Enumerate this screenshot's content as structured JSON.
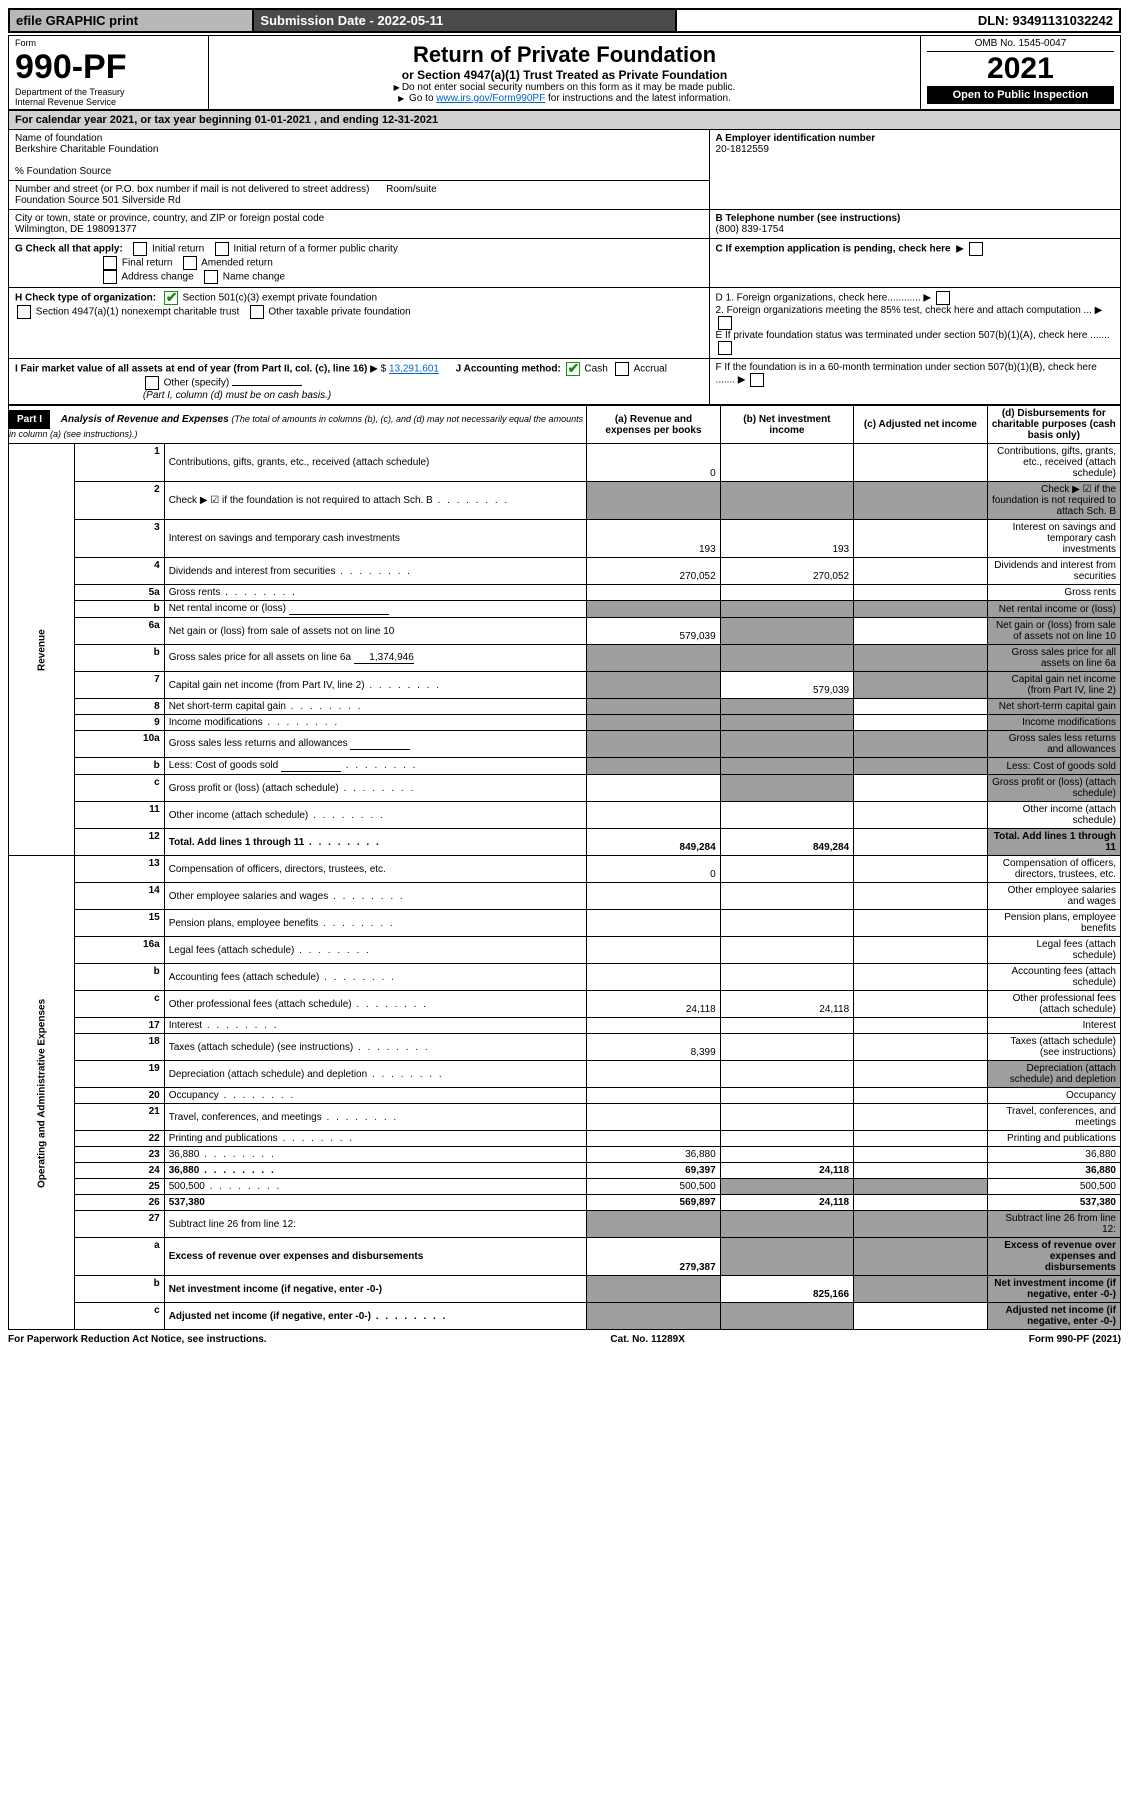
{
  "topbar": {
    "efile": "efile GRAPHIC print",
    "submission_label": "Submission Date - 2022-05-11",
    "dln": "DLN: 93491131032242"
  },
  "header": {
    "form_word": "Form",
    "form_no": "990-PF",
    "dept1": "Department of the Treasury",
    "dept2": "Internal Revenue Service",
    "title": "Return of Private Foundation",
    "subtitle": "or Section 4947(a)(1) Trust Treated as Private Foundation",
    "note1": "Do not enter social security numbers on this form as it may be made public.",
    "note2_pre": "Go to ",
    "note2_link": "www.irs.gov/Form990PF",
    "note2_post": " for instructions and the latest information.",
    "omb": "OMB No. 1545-0047",
    "year": "2021",
    "open": "Open to Public Inspection"
  },
  "cal": {
    "text_pre": "For calendar year 2021, or tax year beginning ",
    "begin": "01-01-2021",
    "mid": " , and ending ",
    "end": "12-31-2021"
  },
  "org": {
    "name_label": "Name of foundation",
    "name": "Berkshire Charitable Foundation",
    "care": "% Foundation Source",
    "addr_label": "Number and street (or P.O. box number if mail is not delivered to street address)",
    "addr": "Foundation Source 501 Silverside Rd",
    "room_label": "Room/suite",
    "city_label": "City or town, state or province, country, and ZIP or foreign postal code",
    "city": "Wilmington, DE  198091377",
    "a_label": "A Employer identification number",
    "a_val": "20-1812559",
    "b_label": "B Telephone number (see instructions)",
    "b_val": "(800) 839-1754",
    "c_label": "C If exemption application is pending, check here",
    "d1": "D 1. Foreign organizations, check here............",
    "d2": "2. Foreign organizations meeting the 85% test, check here and attach computation ...",
    "e": "E  If private foundation status was terminated under section 507(b)(1)(A), check here .......",
    "f": "F  If the foundation is in a 60-month termination under section 507(b)(1)(B), check here .......",
    "g_label": "G Check all that apply:",
    "g_items": [
      "Initial return",
      "Initial return of a former public charity",
      "Final return",
      "Amended return",
      "Address change",
      "Name change"
    ],
    "h_label": "H Check type of organization:",
    "h1": "Section 501(c)(3) exempt private foundation",
    "h2": "Section 4947(a)(1) nonexempt charitable trust",
    "h3": "Other taxable private foundation",
    "i_label": "I Fair market value of all assets at end of year (from Part II, col. (c), line 16)",
    "i_val": "13,291,601",
    "j_label": "J Accounting method:",
    "j_cash": "Cash",
    "j_accrual": "Accrual",
    "j_other": "Other (specify)",
    "j_note": "(Part I, column (d) must be on cash basis.)"
  },
  "part1": {
    "label": "Part I",
    "title": "Analysis of Revenue and Expenses",
    "note": " (The total of amounts in columns (b), (c), and (d) may not necessarily equal the amounts in column (a) (see instructions).)",
    "cols": {
      "a": "(a) Revenue and expenses per books",
      "b": "(b) Net investment income",
      "c": "(c) Adjusted net income",
      "d": "(d) Disbursements for charitable purposes (cash basis only)"
    }
  },
  "section_labels": {
    "rev": "Revenue",
    "oae": "Operating and Administrative Expenses"
  },
  "rows": [
    {
      "n": "1",
      "d": "Contributions, gifts, grants, etc., received (attach schedule)",
      "a": "0"
    },
    {
      "n": "2",
      "d": "Check ▶ ☑ if the foundation is not required to attach Sch. B",
      "dots": true,
      "a_grey": true,
      "b_grey": true,
      "c_grey": true,
      "d_grey": true
    },
    {
      "n": "3",
      "d": "Interest on savings and temporary cash investments",
      "a": "193",
      "b": "193"
    },
    {
      "n": "4",
      "d": "Dividends and interest from securities",
      "dots": true,
      "a": "270,052",
      "b": "270,052"
    },
    {
      "n": "5a",
      "d": "Gross rents",
      "dots": true
    },
    {
      "n": "b",
      "d": "Net rental income or (loss)",
      "underline": true,
      "a_grey": true,
      "b_grey": true,
      "c_grey": true,
      "d_grey": true
    },
    {
      "n": "6a",
      "d": "Net gain or (loss) from sale of assets not on line 10",
      "a": "579,039",
      "b_grey": true,
      "d_grey": true
    },
    {
      "n": "b",
      "d": "Gross sales price for all assets on line 6a",
      "inline": "1,374,946",
      "a_grey": true,
      "b_grey": true,
      "c_grey": true,
      "d_grey": true
    },
    {
      "n": "7",
      "d": "Capital gain net income (from Part IV, line 2)",
      "dots": true,
      "a_grey": true,
      "b": "579,039",
      "c_grey": true,
      "d_grey": true
    },
    {
      "n": "8",
      "d": "Net short-term capital gain",
      "dots": true,
      "a_grey": true,
      "b_grey": true,
      "d_grey": true
    },
    {
      "n": "9",
      "d": "Income modifications",
      "dots": true,
      "a_grey": true,
      "b_grey": true,
      "d_grey": true
    },
    {
      "n": "10a",
      "d": "Gross sales less returns and allowances",
      "inline_blank": true,
      "a_grey": true,
      "b_grey": true,
      "c_grey": true,
      "d_grey": true
    },
    {
      "n": "b",
      "d": "Less: Cost of goods sold",
      "dots": true,
      "inline_blank": true,
      "a_grey": true,
      "b_grey": true,
      "c_grey": true,
      "d_grey": true
    },
    {
      "n": "c",
      "d": "Gross profit or (loss) (attach schedule)",
      "dots": true,
      "b_grey": true,
      "d_grey": true
    },
    {
      "n": "11",
      "d": "Other income (attach schedule)",
      "dots": true
    },
    {
      "n": "12",
      "d": "Total. Add lines 1 through 11",
      "dots": true,
      "bold": true,
      "a": "849,284",
      "b": "849,284",
      "d_grey": true
    },
    {
      "n": "13",
      "d": "Compensation of officers, directors, trustees, etc.",
      "a": "0"
    },
    {
      "n": "14",
      "d": "Other employee salaries and wages",
      "dots": true
    },
    {
      "n": "15",
      "d": "Pension plans, employee benefits",
      "dots": true
    },
    {
      "n": "16a",
      "d": "Legal fees (attach schedule)",
      "dots": true
    },
    {
      "n": "b",
      "d": "Accounting fees (attach schedule)",
      "dots": true
    },
    {
      "n": "c",
      "d": "Other professional fees (attach schedule)",
      "dots": true,
      "a": "24,118",
      "b": "24,118"
    },
    {
      "n": "17",
      "d": "Interest",
      "dots": true
    },
    {
      "n": "18",
      "d": "Taxes (attach schedule) (see instructions)",
      "dots": true,
      "a": "8,399"
    },
    {
      "n": "19",
      "d": "Depreciation (attach schedule) and depletion",
      "dots": true,
      "d_grey": true
    },
    {
      "n": "20",
      "d": "Occupancy",
      "dots": true
    },
    {
      "n": "21",
      "d": "Travel, conferences, and meetings",
      "dots": true
    },
    {
      "n": "22",
      "d": "Printing and publications",
      "dots": true
    },
    {
      "n": "23",
      "d": "36,880",
      "dots": true,
      "a": "36,880"
    },
    {
      "n": "24",
      "d": "36,880",
      "dots": true,
      "bold": true,
      "a": "69,397",
      "b": "24,118"
    },
    {
      "n": "25",
      "d": "500,500",
      "dots": true,
      "a": "500,500",
      "b_grey": true,
      "c_grey": true
    },
    {
      "n": "26",
      "d": "537,380",
      "bold": true,
      "a": "569,897",
      "b": "24,118"
    },
    {
      "n": "27",
      "d": "Subtract line 26 from line 12:",
      "a_grey": true,
      "b_grey": true,
      "c_grey": true,
      "d_grey": true
    },
    {
      "n": "a",
      "d": "Excess of revenue over expenses and disbursements",
      "bold": true,
      "a": "279,387",
      "b_grey": true,
      "c_grey": true,
      "d_grey": true
    },
    {
      "n": "b",
      "d": "Net investment income (if negative, enter -0-)",
      "bold": true,
      "a_grey": true,
      "b": "825,166",
      "c_grey": true,
      "d_grey": true
    },
    {
      "n": "c",
      "d": "Adjusted net income (if negative, enter -0-)",
      "bold": true,
      "dots": true,
      "a_grey": true,
      "b_grey": true,
      "d_grey": true
    }
  ],
  "footer": {
    "left": "For Paperwork Reduction Act Notice, see instructions.",
    "mid": "Cat. No. 11289X",
    "right": "Form 990-PF (2021)"
  }
}
